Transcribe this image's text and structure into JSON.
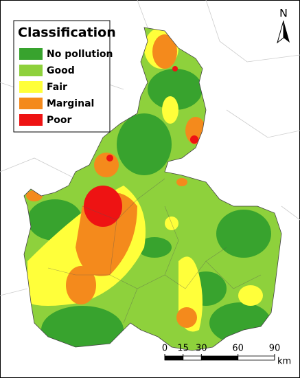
{
  "legend": {
    "title": "Classification",
    "items": [
      {
        "name": "No pollution",
        "color": "#38a32e"
      },
      {
        "name": "Good",
        "color": "#8ed13c"
      },
      {
        "name": "Fair",
        "color": "#ffff3a"
      },
      {
        "name": "Marginal",
        "color": "#f48a1c"
      },
      {
        "name": "Poor",
        "color": "#ee1313"
      }
    ]
  },
  "north_arrow": {
    "label": "N"
  },
  "scale_bar": {
    "ticks": [
      0,
      15,
      30,
      60,
      90
    ],
    "unit": "km"
  }
}
